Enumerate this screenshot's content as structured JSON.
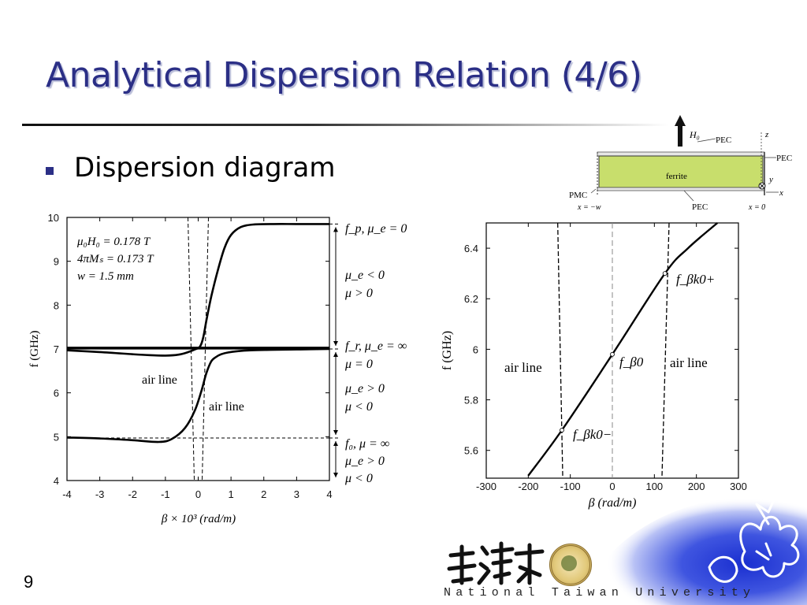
{
  "slide": {
    "title": "Analytical Dispersion Relation (4/6)",
    "bullet": "Dispersion diagram",
    "page_number": "9",
    "university": "National Taiwan University"
  },
  "colors": {
    "title": "#2b2f86",
    "ferrite": "#c8de6c",
    "curve": "#000000"
  },
  "structure_diagram": {
    "labels": {
      "h0": "H₀",
      "pec_top": "PEC",
      "pec_right": "PEC",
      "pec_bottom": "PEC",
      "pmc": "PMC",
      "ferrite": "ferrite",
      "z_axis": "z",
      "y_axis": "y",
      "x_axis": "x",
      "x_left": "x = −w",
      "x_right": "x = 0"
    }
  },
  "chart_data": [
    {
      "type": "line",
      "xlabel": "β × 10³ (rad/m)",
      "ylabel": "f (GHz)",
      "xlim": [
        -4,
        4
      ],
      "ylim": [
        4,
        10
      ],
      "xticks": [
        "-4",
        "-3",
        "-2",
        "-1",
        "0",
        "1",
        "2",
        "3",
        "4"
      ],
      "yticks": [
        "4",
        "5",
        "6",
        "7",
        "8",
        "9",
        "10"
      ],
      "params": [
        "μ₀H₀ = 0.178 T",
        "4πMₛ = 0.173 T",
        "w = 1.5 mm"
      ],
      "region_labels": [
        "f_p, μ_e = 0",
        "μ_e < 0",
        "μ > 0",
        "f_r, μ_e = ∞",
        "μ = 0",
        "μ_e > 0",
        "μ < 0",
        "f₀, μ = ∞",
        "μ_e > 0",
        "μ < 0"
      ],
      "annotations": [
        "air line",
        "air line"
      ],
      "ref_lines": {
        "f_p": 9.85,
        "f_r": 7.0,
        "f_0": 4.97
      },
      "series": [
        {
          "x": [
            -4,
            -3,
            -2,
            -1.2,
            -0.8,
            -0.4,
            -0.1,
            0.1,
            0.25,
            0.4,
            0.55,
            0.7,
            0.9,
            1.2,
            1.6,
            2.2,
            3,
            4
          ],
          "y": [
            4.98,
            4.96,
            4.92,
            4.88,
            4.95,
            5.2,
            5.6,
            6.05,
            6.45,
            6.72,
            6.82,
            6.88,
            6.92,
            6.95,
            6.97,
            6.98,
            6.99,
            7.0
          ]
        },
        {
          "x": [
            -4,
            -3,
            -2,
            -1.5,
            -1,
            -0.6,
            -0.3,
            -0.1,
            0.05,
            0.15,
            0.25,
            0.4,
            0.6,
            0.8,
            1.0,
            1.3,
            1.7,
            2.3,
            3,
            4
          ],
          "y": [
            6.97,
            6.93,
            6.88,
            6.86,
            6.85,
            6.87,
            6.93,
            6.99,
            7.05,
            7.25,
            7.65,
            8.2,
            8.8,
            9.3,
            9.6,
            9.78,
            9.84,
            9.85,
            9.85,
            9.85
          ]
        },
        {
          "x": [
            -4,
            4
          ],
          "y": [
            7.02,
            7.02
          ]
        }
      ]
    },
    {
      "type": "line",
      "xlabel": "β (rad/m)",
      "ylabel": "f (GHz)",
      "xlim": [
        -300,
        300
      ],
      "ylim": [
        5.49,
        6.5
      ],
      "xticks": [
        "-300",
        "-200",
        "-100",
        "0",
        "100",
        "200",
        "300"
      ],
      "yticks": [
        "5.6",
        "5.8",
        "6",
        "6.2",
        "6.4"
      ],
      "annotations": [
        "air line",
        "air line",
        "f_βk0+",
        "f_β0",
        "f_βk0−"
      ],
      "series": [
        {
          "x": [
            -200,
            -120,
            0,
            125,
            180,
            250
          ],
          "y": [
            5.5,
            5.68,
            5.98,
            6.3,
            6.4,
            6.5
          ]
        }
      ]
    }
  ]
}
